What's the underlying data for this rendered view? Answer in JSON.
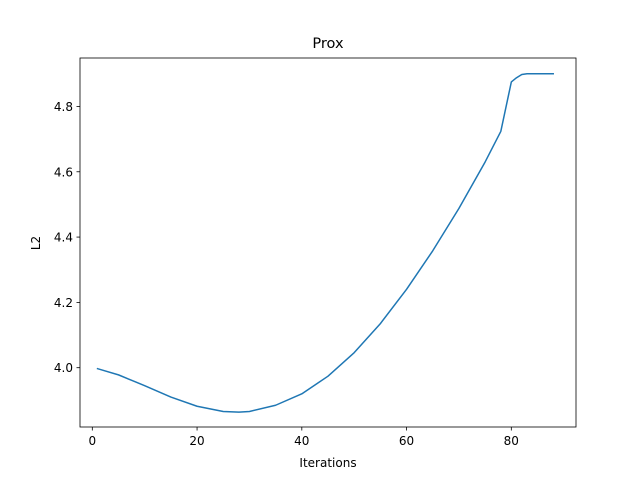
{
  "chart_data": {
    "type": "line",
    "title": "Prox",
    "xlabel": "Iterations",
    "ylabel": "L2",
    "xlim": [
      -2.35,
      92.35
    ],
    "ylim": [
      3.8184,
      4.9484
    ],
    "xticks": [
      0,
      20,
      40,
      60,
      80
    ],
    "yticks": [
      4.0,
      4.2,
      4.4,
      4.6,
      4.8
    ],
    "xtick_labels": [
      "0",
      "20",
      "40",
      "60",
      "80"
    ],
    "ytick_labels": [
      "4.0",
      "4.2",
      "4.4",
      "4.6",
      "4.8"
    ],
    "grid": false,
    "legend": "none",
    "line_color": "#1f77b4",
    "series": [
      {
        "x": [
          1,
          5,
          10,
          15,
          20,
          25,
          28,
          30,
          35,
          40,
          45,
          50,
          55,
          60,
          65,
          70,
          75,
          78,
          80,
          81,
          82,
          83,
          85,
          88
        ],
        "y": [
          3.997,
          3.978,
          3.945,
          3.91,
          3.882,
          3.866,
          3.864,
          3.866,
          3.885,
          3.92,
          3.974,
          4.046,
          4.135,
          4.24,
          4.358,
          4.488,
          4.63,
          4.724,
          4.875,
          4.888,
          4.898,
          4.9,
          4.9,
          4.9
        ]
      }
    ]
  }
}
